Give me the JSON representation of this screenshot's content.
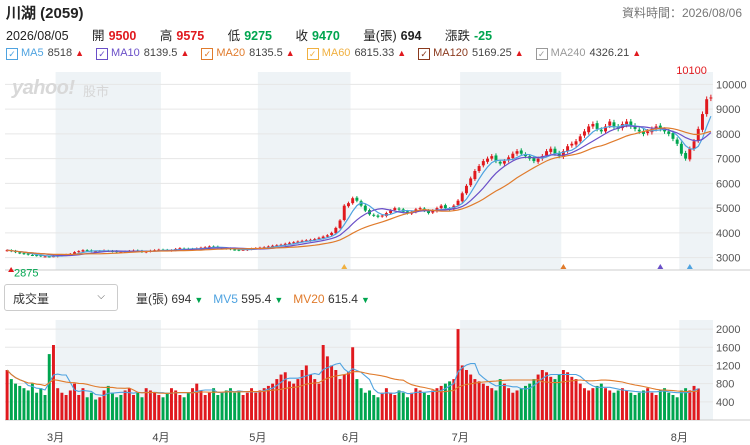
{
  "header": {
    "title": "川湖 (2059)",
    "as_of": "資料時間：2026/08/06"
  },
  "quote": {
    "date": "2026/08/05",
    "open_label": "開",
    "open": "9500",
    "high_label": "高",
    "high": "9575",
    "low_label": "低",
    "low": "9275",
    "close_label": "收",
    "close": "9470",
    "volume_label": "量(張)",
    "volume": "694",
    "change_label": "漲跌",
    "change": "-25"
  },
  "ma_legend": [
    {
      "name": "MA5",
      "value": "8518",
      "color": "#4fa3e0",
      "dir": "up"
    },
    {
      "name": "MA10",
      "value": "8139.5",
      "color": "#6a4fc8",
      "dir": "up"
    },
    {
      "name": "MA20",
      "value": "8135.5",
      "color": "#e07b2c",
      "dir": "up"
    },
    {
      "name": "MA60",
      "value": "6815.33",
      "color": "#f0b040",
      "dir": "up"
    },
    {
      "name": "MA120",
      "value": "5169.25",
      "color": "#8b3a1e",
      "dir": "up"
    },
    {
      "name": "MA240",
      "value": "4326.21",
      "color": "#999999",
      "dir": "up"
    }
  ],
  "watermark": {
    "brand": "yahoo!",
    "sub": "股市"
  },
  "volume_panel": {
    "selector_label": "成交量",
    "legend": [
      {
        "name": "量(張)",
        "value": "694",
        "dir": "down",
        "color": "#333333"
      },
      {
        "name": "MV5",
        "value": "595.4",
        "dir": "down",
        "color": "#4fa3e0"
      },
      {
        "name": "MV20",
        "value": "615.4",
        "dir": "down",
        "color": "#e07b2c"
      }
    ]
  },
  "colors": {
    "up": "#e0191e",
    "down": "#00a54f",
    "shade": "#eef3f6",
    "grid": "#e6e6e6"
  },
  "chart_data": [
    {
      "type": "candlestick",
      "title": "",
      "price_ticks": [
        3000,
        4000,
        5000,
        6000,
        7000,
        8000,
        9000,
        10000
      ],
      "ylim": [
        2500,
        10500
      ],
      "annotations": {
        "max_label": "10100",
        "min_label": "2875"
      },
      "x_labels": [
        "3月",
        "4月",
        "5月",
        "6月",
        "7月",
        "8月"
      ],
      "close": [
        3300,
        3260,
        3220,
        3180,
        3150,
        3120,
        3100,
        3080,
        3060,
        3050,
        3040,
        3060,
        3080,
        3100,
        3120,
        3150,
        3220,
        3260,
        3300,
        3280,
        3260,
        3250,
        3270,
        3290,
        3270,
        3250,
        3240,
        3230,
        3250,
        3270,
        3290,
        3260,
        3230,
        3250,
        3280,
        3300,
        3320,
        3300,
        3290,
        3300,
        3350,
        3380,
        3360,
        3340,
        3350,
        3370,
        3400,
        3420,
        3450,
        3430,
        3400,
        3380,
        3360,
        3340,
        3320,
        3300,
        3320,
        3340,
        3360,
        3380,
        3400,
        3420,
        3450,
        3480,
        3500,
        3520,
        3560,
        3600,
        3620,
        3650,
        3680,
        3700,
        3720,
        3750,
        3800,
        3850,
        3900,
        4000,
        4200,
        4500,
        5100,
        5200,
        5400,
        5300,
        5100,
        4900,
        4750,
        4700,
        4650,
        4700,
        4800,
        4900,
        5000,
        4950,
        4850,
        4800,
        4850,
        4950,
        5000,
        4900,
        4800,
        4900,
        5000,
        5100,
        5000,
        4950,
        5100,
        5300,
        5600,
        5900,
        6200,
        6500,
        6700,
        6900,
        7000,
        7100,
        6900,
        6800,
        6900,
        7050,
        7200,
        7300,
        7200,
        7100,
        7000,
        6900,
        7000,
        7100,
        7300,
        7400,
        7200,
        7100,
        7300,
        7500,
        7600,
        7700,
        7900,
        8100,
        8300,
        8400,
        8200,
        8100,
        8300,
        8500,
        8300,
        8200,
        8400,
        8500,
        8300,
        8200,
        8100,
        8000,
        8100,
        8200,
        8300,
        8200,
        8100,
        8000,
        7800,
        7600,
        7200,
        7000,
        7400,
        7700,
        8200,
        8800,
        9400,
        9470
      ]
    },
    {
      "type": "bar",
      "title": "",
      "volume_ticks": [
        400,
        800,
        1200,
        1600,
        2000
      ],
      "ylim": [
        0,
        2200
      ],
      "values": [
        1100,
        900,
        800,
        750,
        700,
        650,
        800,
        600,
        700,
        550,
        1450,
        1650,
        700,
        600,
        550,
        650,
        800,
        550,
        700,
        500,
        600,
        450,
        500,
        650,
        750,
        600,
        500,
        550,
        650,
        700,
        550,
        600,
        500,
        700,
        650,
        600,
        550,
        500,
        600,
        700,
        650,
        550,
        500,
        600,
        700,
        800,
        650,
        550,
        600,
        700,
        550,
        600,
        650,
        700,
        600,
        650,
        550,
        600,
        700,
        600,
        650,
        700,
        750,
        800,
        900,
        1000,
        1050,
        850,
        800,
        900,
        1100,
        1200,
        1000,
        900,
        800,
        1650,
        1400,
        1200,
        1100,
        900,
        1000,
        1050,
        1600,
        900,
        700,
        600,
        650,
        550,
        500,
        600,
        700,
        600,
        550,
        650,
        600,
        500,
        600,
        700,
        650,
        600,
        550,
        650,
        700,
        750,
        800,
        850,
        900,
        2000,
        1200,
        1100,
        1000,
        900,
        850,
        800,
        750,
        700,
        650,
        900,
        800,
        700,
        600,
        650,
        700,
        750,
        800,
        900,
        1000,
        1100,
        1050,
        950,
        900,
        1000,
        1100,
        1050,
        950,
        900,
        800,
        700,
        650,
        700,
        750,
        800,
        700,
        650,
        600,
        650,
        700,
        650,
        600,
        550,
        600,
        650,
        700,
        600,
        550,
        650,
        700,
        600,
        550,
        500,
        650,
        700,
        650,
        750,
        694
      ]
    }
  ]
}
